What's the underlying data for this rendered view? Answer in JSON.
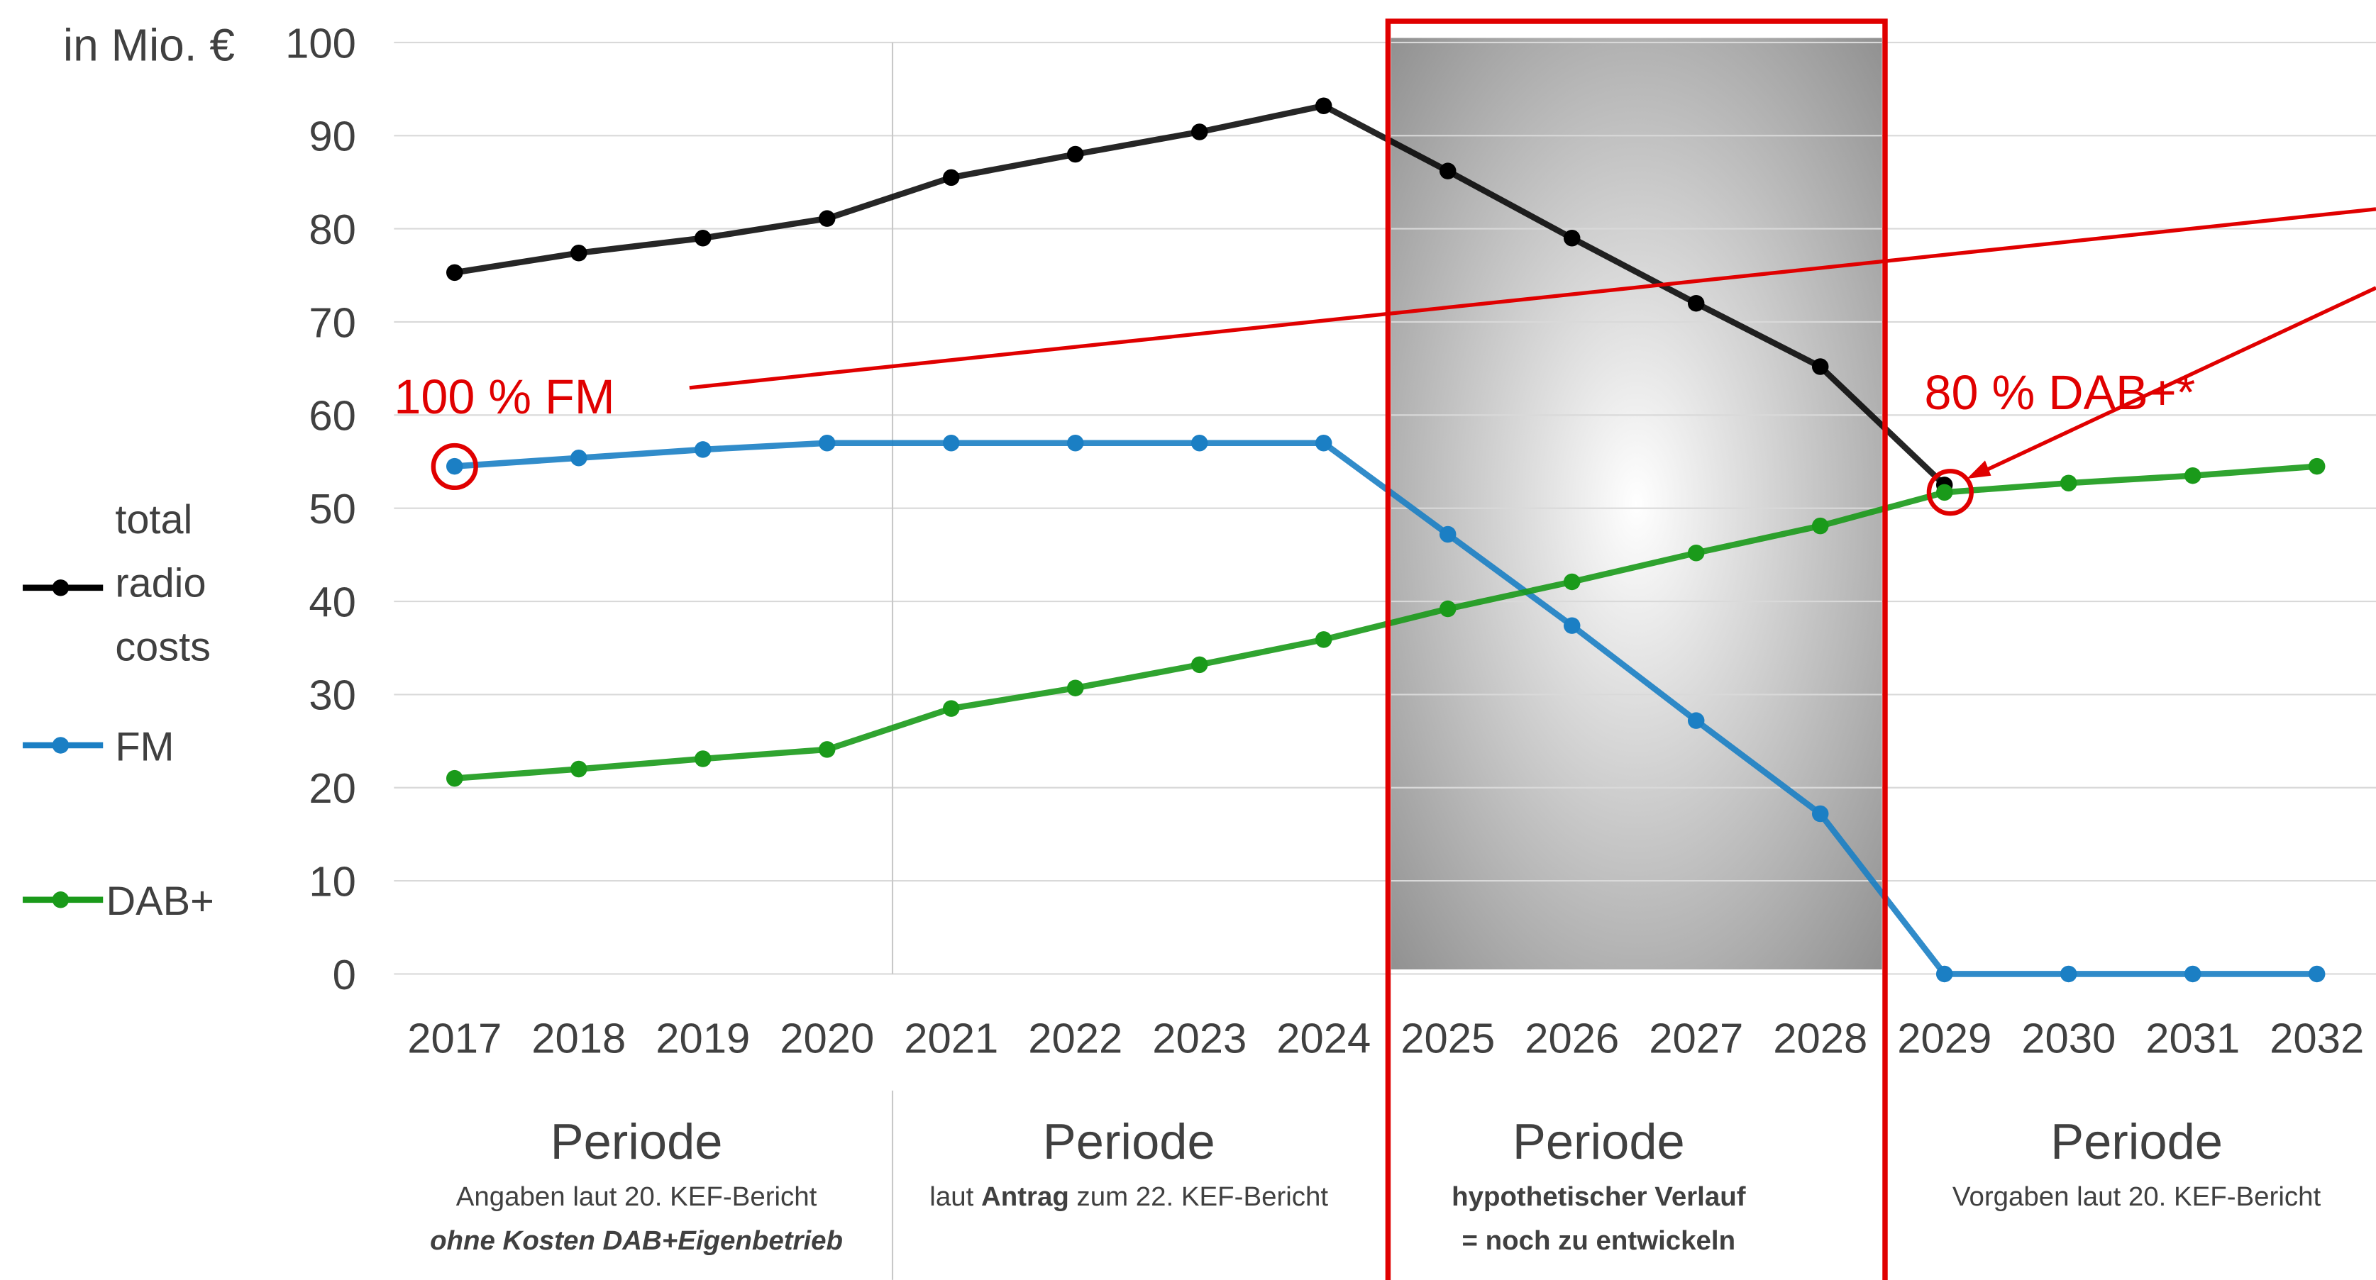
{
  "chart_data": {
    "type": "line",
    "unit_label": "in Mio. €",
    "categories": [
      "2017",
      "2018",
      "2019",
      "2020",
      "2021",
      "2022",
      "2023",
      "2024",
      "2025",
      "2026",
      "2027",
      "2028",
      "2029",
      "2030",
      "2031",
      "2032"
    ],
    "series": [
      {
        "name": "total radio costs",
        "color": "#000000",
        "values": [
          75.3,
          77.4,
          79,
          81.1,
          85.5,
          88,
          90.4,
          93.2,
          86.2,
          79,
          72,
          65.2,
          52.5,
          null,
          null,
          null
        ]
      },
      {
        "name": "FM",
        "color": "#1b7fc4",
        "values": [
          54.5,
          55.4,
          56.3,
          57,
          57,
          57,
          57,
          57,
          47.2,
          37.4,
          27.2,
          17.2,
          0,
          0,
          0,
          0
        ]
      },
      {
        "name": "DAB+",
        "color": "#1a9a1a",
        "values": [
          21,
          22,
          23.1,
          24.1,
          28.5,
          30.7,
          33.2,
          35.9,
          39.2,
          42.1,
          45.2,
          48.1,
          51.7,
          52.7,
          53.5,
          54.5
        ]
      }
    ],
    "ylim": [
      0,
      100
    ],
    "yticks": [
      0,
      10,
      20,
      30,
      40,
      50,
      60,
      70,
      80,
      90,
      100
    ],
    "grid": true,
    "annotations": [
      "100 % FM",
      "80 % DAB+*"
    ],
    "periods": [
      {
        "title": "Periode",
        "lines": [
          [
            {
              "text": "Angaben laut 20. KEF-Bericht"
            }
          ],
          [
            {
              "text": "ohne Kosten DAB+Eigenbetrieb",
              "bold": true
            }
          ]
        ]
      },
      {
        "title": "Periode",
        "lines": [
          [
            {
              "text": "laut "
            },
            {
              "text": "Antrag",
              "bold": true
            },
            {
              "text": " zum 22. KEF-Bericht"
            }
          ]
        ]
      },
      {
        "title": "Periode",
        "lines": [
          [
            {
              "text": "hypothetischer Verlauf",
              "bold": true
            }
          ],
          [
            {
              "text": "= noch zu entwickeln",
              "bold": true
            }
          ]
        ]
      },
      {
        "title": "Periode",
        "lines": [
          [
            {
              "text": "Vorgaben laut 20. KEF-Bericht"
            }
          ]
        ]
      }
    ]
  }
}
